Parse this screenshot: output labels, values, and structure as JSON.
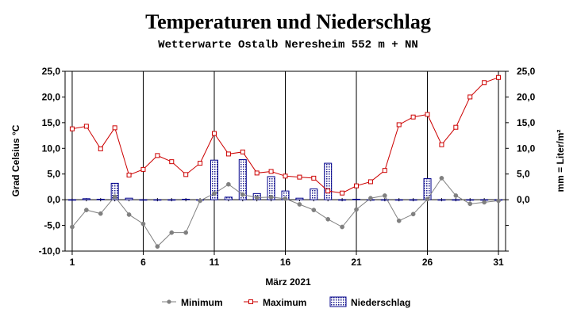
{
  "chart_data": {
    "type": "bar+line",
    "title": "Temperaturen und  Niederschlag",
    "subtitle": "Wetterwarte Ostalb Neresheim 552 m + NN",
    "xlabel": "März 2021",
    "ylabel_left": "Grad Celsius °C",
    "ylabel_right": "mm = Liter/m²",
    "ylim_left": [
      -10,
      25
    ],
    "ylim_right": [
      -10,
      25
    ],
    "xlim": [
      0.5,
      31.5
    ],
    "x_ticks": [
      1,
      6,
      11,
      16,
      21,
      26,
      31
    ],
    "x_tick_labels": [
      "1",
      "6",
      "11",
      "16",
      "21",
      "26",
      "31"
    ],
    "y_ticks_left": [
      -10,
      -5,
      0,
      5,
      10,
      15,
      20,
      25
    ],
    "y_tick_labels_left": [
      "-10,0",
      "-5,0",
      "0,0",
      "5,0",
      "10,0",
      "15,0",
      "20,0",
      "25,0"
    ],
    "y_ticks_right": [
      0,
      5,
      10,
      15,
      20,
      25
    ],
    "y_tick_labels_right": [
      "0,0",
      "5,0",
      "10,0",
      "15,0",
      "20,0",
      "25,0"
    ],
    "days": [
      1,
      2,
      3,
      4,
      5,
      6,
      7,
      8,
      9,
      10,
      11,
      12,
      13,
      14,
      15,
      16,
      17,
      18,
      19,
      20,
      21,
      22,
      23,
      24,
      25,
      26,
      27,
      28,
      29,
      30,
      31
    ],
    "series": [
      {
        "name": "Minimum",
        "type": "line",
        "color": "#808080",
        "values": [
          -5.3,
          -2.0,
          -2.7,
          0.6,
          -2.9,
          -4.7,
          -9.1,
          -6.4,
          -6.4,
          -0.2,
          1.2,
          3.0,
          1.0,
          0.4,
          0.5,
          0.2,
          -0.9,
          -2.0,
          -3.8,
          -5.3,
          -1.9,
          0.3,
          0.8,
          -4.1,
          -2.8,
          0.1,
          4.2,
          0.8,
          -0.8,
          -0.5,
          -0.2
        ]
      },
      {
        "name": "Maximum",
        "type": "line",
        "color": "#cc0000",
        "values": [
          13.8,
          14.3,
          9.9,
          14.0,
          4.8,
          5.9,
          8.6,
          7.4,
          4.9,
          7.1,
          12.9,
          8.9,
          9.3,
          5.2,
          5.5,
          4.6,
          4.4,
          4.2,
          1.7,
          1.3,
          2.7,
          3.5,
          5.7,
          14.6,
          16.1,
          16.6,
          10.7,
          14.1,
          20.0,
          22.8,
          23.8
        ]
      },
      {
        "name": "Niederschlag",
        "type": "bar",
        "color": "#00008b",
        "values": [
          0.0,
          0.2,
          0.1,
          3.2,
          0.3,
          0.0,
          0.0,
          0.0,
          0.1,
          0.0,
          7.7,
          0.5,
          7.8,
          1.2,
          4.5,
          1.7,
          0.3,
          2.1,
          7.1,
          0.0,
          0.1,
          0.0,
          0.0,
          0.0,
          0.0,
          4.1,
          0.0,
          0.0,
          0.0,
          0.0,
          0.0
        ]
      }
    ],
    "legend": {
      "placement": "bottom",
      "entries": [
        "Minimum",
        "Maximum",
        "Niederschlag"
      ]
    },
    "grid": "vertical lines at x ticks, horizontal line at 0",
    "background": "#ffffff"
  }
}
